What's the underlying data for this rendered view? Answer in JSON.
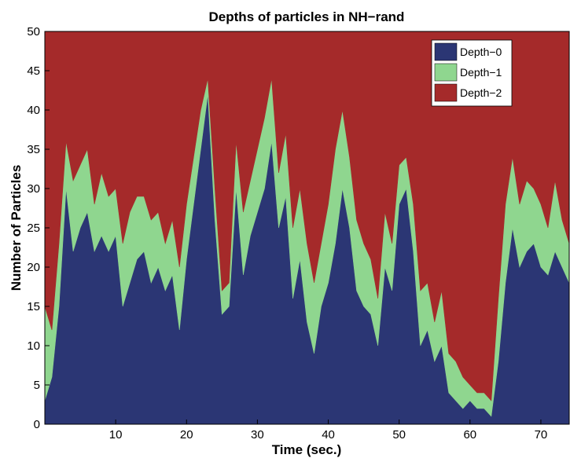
{
  "chart_data": {
    "type": "area",
    "stacked": true,
    "title": "Depths of particles in NH−rand",
    "xlabel": "Time (sec.)",
    "ylabel": "Number of Particles",
    "xlim": [
      0,
      74
    ],
    "ylim": [
      0,
      50
    ],
    "xticks": [
      10,
      20,
      30,
      40,
      50,
      60,
      70
    ],
    "yticks": [
      0,
      5,
      10,
      15,
      20,
      25,
      30,
      35,
      40,
      45,
      50
    ],
    "grid": false,
    "legend_position": "top-right",
    "x": [
      0,
      1,
      2,
      3,
      4,
      5,
      6,
      7,
      8,
      9,
      10,
      11,
      12,
      13,
      14,
      15,
      16,
      17,
      18,
      19,
      20,
      21,
      22,
      23,
      24,
      25,
      26,
      27,
      28,
      29,
      30,
      31,
      32,
      33,
      34,
      35,
      36,
      37,
      38,
      39,
      40,
      41,
      42,
      43,
      44,
      45,
      46,
      47,
      48,
      49,
      50,
      51,
      52,
      53,
      54,
      55,
      56,
      57,
      58,
      59,
      60,
      61,
      62,
      63,
      64,
      65,
      66,
      67,
      68,
      69,
      70,
      71,
      72,
      73,
      74
    ],
    "series": [
      {
        "name": "Depth−0",
        "color": "#2b3674",
        "values": [
          3,
          6,
          15,
          30,
          22,
          25,
          27,
          22,
          24,
          22,
          24,
          15,
          18,
          21,
          22,
          18,
          20,
          17,
          19,
          12,
          21,
          28,
          35,
          42,
          26,
          14,
          15,
          30,
          19,
          24,
          27,
          30,
          36,
          25,
          29,
          16,
          21,
          13,
          9,
          15,
          18,
          23,
          30,
          25,
          17,
          15,
          14,
          10,
          20,
          17,
          28,
          30,
          22,
          10,
          12,
          8,
          10,
          4,
          3,
          2,
          3,
          2,
          2,
          1,
          8,
          18,
          25,
          20,
          22,
          23,
          20,
          19,
          22,
          20,
          18
        ]
      },
      {
        "name": "Depth−1",
        "color": "#8fd68f",
        "values": [
          12,
          6,
          8,
          6,
          9,
          8,
          8,
          6,
          8,
          7,
          6,
          8,
          9,
          8,
          7,
          8,
          7,
          6,
          7,
          8,
          7,
          6,
          5,
          2,
          4,
          3,
          3,
          6,
          8,
          7,
          8,
          9,
          8,
          7,
          8,
          9,
          9,
          10,
          9,
          8,
          10,
          12,
          10,
          9,
          9,
          8,
          7,
          6,
          7,
          6,
          5,
          4,
          6,
          7,
          6,
          5,
          7,
          5,
          5,
          4,
          2,
          2,
          2,
          2,
          8,
          10,
          9,
          8,
          9,
          7,
          8,
          6,
          9,
          6,
          5
        ]
      },
      {
        "name": "Depth−2",
        "color": "#a52a2a",
        "values": [
          35,
          38,
          27,
          14,
          19,
          17,
          15,
          22,
          18,
          21,
          20,
          27,
          23,
          21,
          21,
          24,
          23,
          27,
          24,
          30,
          22,
          16,
          10,
          6,
          20,
          33,
          32,
          14,
          23,
          19,
          15,
          11,
          6,
          18,
          13,
          25,
          20,
          27,
          32,
          27,
          22,
          15,
          10,
          16,
          24,
          27,
          29,
          34,
          23,
          27,
          17,
          16,
          22,
          33,
          32,
          37,
          33,
          41,
          42,
          44,
          45,
          46,
          46,
          47,
          34,
          22,
          16,
          22,
          19,
          20,
          22,
          25,
          19,
          24,
          27
        ]
      }
    ]
  }
}
